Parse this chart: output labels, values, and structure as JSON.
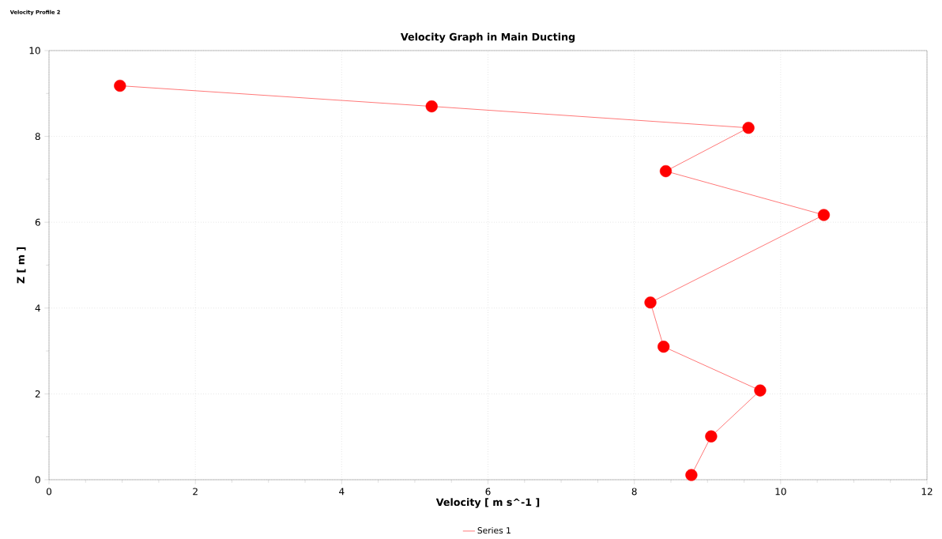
{
  "chart_data": {
    "type": "line",
    "title": "Velocity Graph in Main Ducting",
    "xlabel": "Velocity [ m s^-1 ]",
    "ylabel": "Z [ m ]",
    "annotations": [
      "Velocity Profile 2"
    ],
    "series": [
      {
        "name": "Series 1",
        "color": "#ff0000",
        "x": [
          0.97,
          5.23,
          9.56,
          8.43,
          10.59,
          8.22,
          8.4,
          9.72,
          9.05,
          8.78
        ],
        "values": [
          9.18,
          8.7,
          8.2,
          7.19,
          6.17,
          4.13,
          3.1,
          2.08,
          1.01,
          0.11
        ]
      }
    ],
    "xlim": [
      0,
      12
    ],
    "ylim": [
      0,
      10
    ],
    "xticks": [
      0,
      2,
      4,
      6,
      8,
      10,
      12
    ],
    "yticks": [
      0,
      2,
      4,
      6,
      8,
      10
    ],
    "grid": true,
    "legend": "bottom",
    "marker": "circle",
    "line_style": "solid"
  }
}
